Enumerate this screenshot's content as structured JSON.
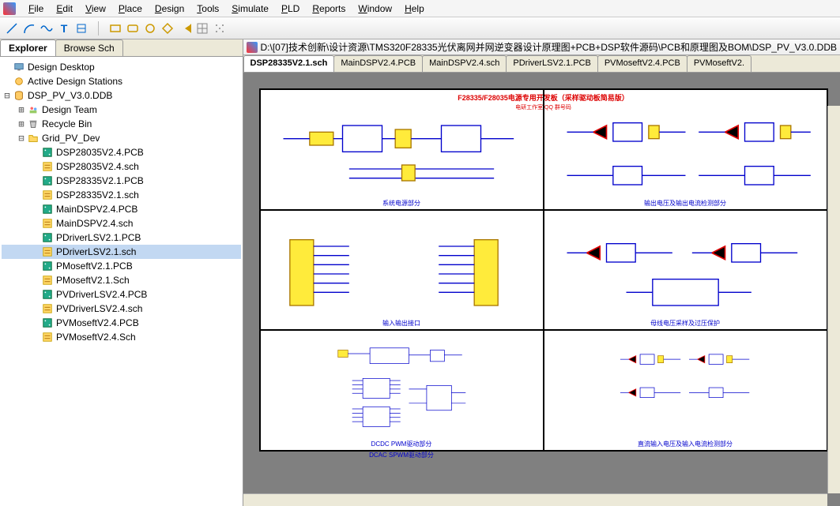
{
  "menu": [
    "File",
    "Edit",
    "View",
    "Place",
    "Design",
    "Tools",
    "Simulate",
    "PLD",
    "Reports",
    "Window",
    "Help"
  ],
  "toolbar_icons": [
    "line",
    "arc",
    "sine",
    "text",
    "sep",
    "rect",
    "rrect",
    "circle",
    "hex",
    "pac",
    "grid",
    "dots"
  ],
  "panel_tabs": {
    "active": "Explorer",
    "inactive": "Browse Sch"
  },
  "tree": [
    {
      "d": 0,
      "t": "",
      "icon": "desktop",
      "label": "Design Desktop"
    },
    {
      "d": 0,
      "t": "",
      "icon": "station",
      "label": "Active Design Stations"
    },
    {
      "d": 0,
      "t": "-",
      "icon": "db",
      "label": "DSP_PV_V3.0.DDB"
    },
    {
      "d": 1,
      "t": "+",
      "icon": "team",
      "label": "Design Team"
    },
    {
      "d": 1,
      "t": "+",
      "icon": "bin",
      "label": "Recycle Bin"
    },
    {
      "d": 1,
      "t": "-",
      "icon": "folder",
      "label": "Grid_PV_Dev"
    },
    {
      "d": 2,
      "t": "",
      "icon": "pcb",
      "label": "DSP28035V2.4.PCB"
    },
    {
      "d": 2,
      "t": "",
      "icon": "sch",
      "label": "DSP28035V2.4.sch"
    },
    {
      "d": 2,
      "t": "",
      "icon": "pcb",
      "label": "DSP28335V2.1.PCB"
    },
    {
      "d": 2,
      "t": "",
      "icon": "sch",
      "label": "DSP28335V2.1.sch"
    },
    {
      "d": 2,
      "t": "",
      "icon": "pcb",
      "label": "MainDSPV2.4.PCB"
    },
    {
      "d": 2,
      "t": "",
      "icon": "sch",
      "label": "MainDSPV2.4.sch"
    },
    {
      "d": 2,
      "t": "",
      "icon": "pcb",
      "label": "PDriverLSV2.1.PCB"
    },
    {
      "d": 2,
      "t": "",
      "icon": "sch",
      "label": "PDriverLSV2.1.sch",
      "sel": true
    },
    {
      "d": 2,
      "t": "",
      "icon": "pcb",
      "label": "PMoseftV2.1.PCB"
    },
    {
      "d": 2,
      "t": "",
      "icon": "sch",
      "label": "PMoseftV2.1.Sch"
    },
    {
      "d": 2,
      "t": "",
      "icon": "pcb",
      "label": "PVDriverLSV2.4.PCB"
    },
    {
      "d": 2,
      "t": "",
      "icon": "sch",
      "label": "PVDriverLSV2.4.sch"
    },
    {
      "d": 2,
      "t": "",
      "icon": "pcb",
      "label": "PVMoseftV2.4.PCB"
    },
    {
      "d": 2,
      "t": "",
      "icon": "sch",
      "label": "PVMoseftV2.4.Sch"
    }
  ],
  "doc_path": "D:\\[07]技术创新\\设计资源\\TMS320F28335光伏离网并网逆变器设计原理图+PCB+DSP软件源码\\PCB和原理图及BOM\\DSP_PV_V3.0.DDB",
  "doc_tabs": [
    "DSP28335V2.1.sch",
    "MainDSPV2.4.PCB",
    "MainDSPV2.4.sch",
    "PDriverLSV2.1.PCB",
    "PVMoseftV2.4.PCB",
    "PVMoseftV2."
  ],
  "sheet": {
    "title": "F28335/F28035电源专用开发板（采样驱动板简易版）",
    "subtitle": "电研工作室  QQ  群号码",
    "cells": [
      {
        "label": "系统电源部分"
      },
      {
        "label": "输出电压及输出电流检测部分"
      },
      {
        "label": "输入输出接口"
      },
      {
        "label": "母线电压采样及过压保护"
      },
      {
        "label": "DCDC PWM驱动部分"
      },
      {
        "label": "直流输入电压及输入电流检测部分"
      }
    ],
    "extra_label": "DCAC SPWM驱动部分",
    "colors": {
      "wire": "#0000cc",
      "text": "#0000cc",
      "title": "#dd0000",
      "comp": "#ffeb3b",
      "sheet_bg": "#ffffff",
      "canvas_bg": "#808080"
    }
  }
}
